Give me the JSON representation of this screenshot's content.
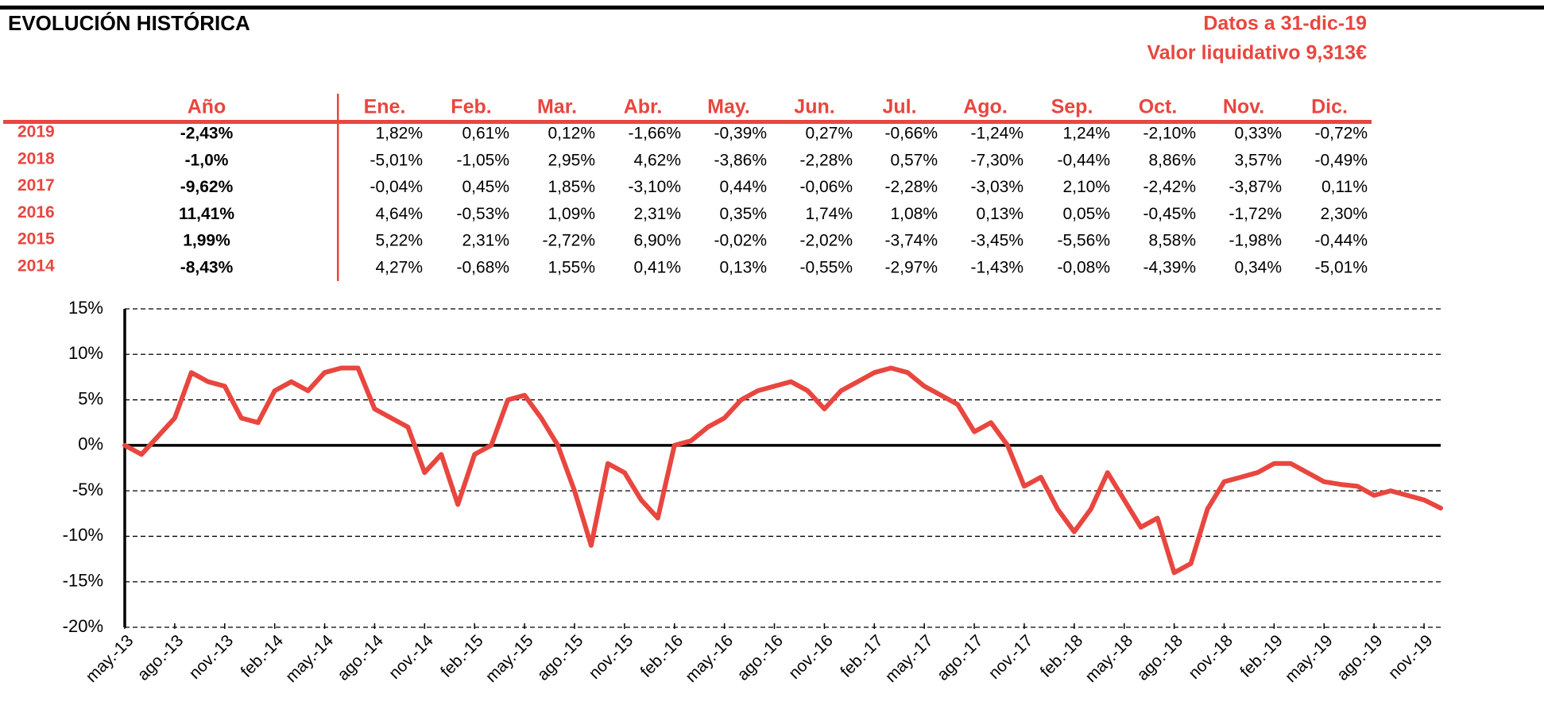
{
  "header": {
    "title": "EVOLUCIÓN HISTÓRICA",
    "date": "Datos a 31-dic-19",
    "nav": "Valor liquidativo 9,313€"
  },
  "table": {
    "header": [
      "Año",
      "Ene.",
      "Feb.",
      "Mar.",
      "Abr.",
      "May.",
      "Jun.",
      "Jul.",
      "Ago.",
      "Sep.",
      "Oct.",
      "Nov.",
      "Dic."
    ],
    "rows": [
      [
        "2019",
        "-2,43%",
        "1,82%",
        "0,61%",
        "0,12%",
        "-1,66%",
        "-0,39%",
        "0,27%",
        "-0,66%",
        "-1,24%",
        "1,24%",
        "-2,10%",
        "0,33%",
        "-0,72%"
      ],
      [
        "2018",
        "-1,0%",
        "-5,01%",
        "-1,05%",
        "2,95%",
        "4,62%",
        "-3,86%",
        "-2,28%",
        "0,57%",
        "-7,30%",
        "-0,44%",
        "8,86%",
        "3,57%",
        "-0,49%"
      ],
      [
        "2017",
        "-9,62%",
        "-0,04%",
        "0,45%",
        "1,85%",
        "-3,10%",
        "0,44%",
        "-0,06%",
        "-2,28%",
        "-3,03%",
        "2,10%",
        "-2,42%",
        "-3,87%",
        "0,11%"
      ],
      [
        "2016",
        "11,41%",
        "4,64%",
        "-0,53%",
        "1,09%",
        "2,31%",
        "0,35%",
        "1,74%",
        "1,08%",
        "0,13%",
        "0,05%",
        "-0,45%",
        "-1,72%",
        "2,30%"
      ],
      [
        "2015",
        "1,99%",
        "5,22%",
        "2,31%",
        "-2,72%",
        "6,90%",
        "-0,02%",
        "-2,02%",
        "-3,74%",
        "-3,45%",
        "-5,56%",
        "8,58%",
        "-1,98%",
        "-0,44%"
      ],
      [
        "2014",
        "-8,43%",
        "4,27%",
        "-0,68%",
        "1,55%",
        "0,41%",
        "0,13%",
        "-0,55%",
        "-2,97%",
        "-1,43%",
        "-0,08%",
        "-4,39%",
        "0,34%",
        "-5,01%"
      ]
    ]
  },
  "chart_data": {
    "type": "line",
    "color": "#e8463f",
    "grid": true,
    "categories": [
      "may.-13",
      null,
      null,
      "ago.-13",
      null,
      null,
      "nov.-13",
      null,
      null,
      "feb.-14",
      null,
      null,
      "may.-14",
      null,
      null,
      "ago.-14",
      null,
      null,
      "nov.-14",
      null,
      null,
      "feb.-15",
      null,
      null,
      "may.-15",
      null,
      null,
      "ago.-15",
      null,
      null,
      "nov.-15",
      null,
      null,
      "feb.-16",
      null,
      null,
      "may.-16",
      null,
      null,
      "ago.-16",
      null,
      null,
      "nov.-16",
      null,
      null,
      "feb.-17",
      null,
      null,
      "may.-17",
      null,
      null,
      "ago.-17",
      null,
      null,
      "nov.-17",
      null,
      null,
      "feb.-18",
      null,
      null,
      "may.-18",
      null,
      null,
      "ago.-18",
      null,
      null,
      "nov.-18",
      null,
      null,
      "feb.-19",
      null,
      null,
      "may.-19",
      null,
      null,
      "ago.-19",
      null,
      null,
      "nov.-19",
      null
    ],
    "values": [
      0,
      -1,
      1,
      3,
      8,
      7,
      6.5,
      3,
      2.5,
      6,
      7,
      6,
      8,
      8.5,
      8.5,
      4,
      3,
      2,
      -3,
      -1,
      -6.5,
      -1,
      0,
      5,
      5.5,
      3,
      0,
      -5,
      -11,
      -2,
      -3,
      -6,
      -8,
      0,
      0.5,
      2,
      3,
      5,
      6,
      6.5,
      7,
      6,
      4,
      6,
      7,
      8,
      8.5,
      8,
      6.5,
      5.5,
      4.5,
      1.5,
      2.5,
      0,
      -4.5,
      -3.5,
      -7,
      -9.5,
      -7,
      -3,
      -6,
      -9,
      -8,
      -14,
      -13,
      -7,
      -4,
      -3.5,
      -3,
      -2,
      -2,
      -3,
      -4,
      -4.3,
      -4.5,
      -5.5,
      -5,
      -5.5,
      -6,
      -6.9
    ],
    "ylim": [
      -20,
      15
    ],
    "yticks": [
      {
        "value": -20,
        "label": "-20%"
      },
      {
        "value": -15,
        "label": "-15%"
      },
      {
        "value": -10,
        "label": "-10%"
      },
      {
        "value": -5,
        "label": "-5%"
      },
      {
        "value": 0,
        "label": "0%"
      },
      {
        "value": 5,
        "label": "5%"
      },
      {
        "value": 10,
        "label": "10%"
      },
      {
        "value": 15,
        "label": "15%"
      }
    ]
  }
}
